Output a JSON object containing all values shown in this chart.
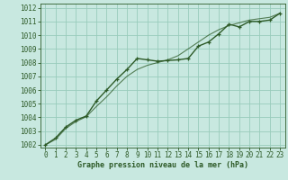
{
  "xlabel": "Graphe pression niveau de la mer (hPa)",
  "bg_color": "#c8e8e0",
  "grid_color": "#99ccbb",
  "line_color": "#2d5a27",
  "spine_color": "#2d5a27",
  "ylim": [
    1001.8,
    1012.3
  ],
  "xlim": [
    -0.5,
    23.5
  ],
  "yticks": [
    1002,
    1003,
    1004,
    1005,
    1006,
    1007,
    1008,
    1009,
    1010,
    1011,
    1012
  ],
  "xticks": [
    0,
    1,
    2,
    3,
    4,
    5,
    6,
    7,
    8,
    9,
    10,
    11,
    12,
    13,
    14,
    15,
    16,
    17,
    18,
    19,
    20,
    21,
    22,
    23
  ],
  "series1_x": [
    0,
    1,
    2,
    3,
    4,
    5,
    6,
    7,
    8,
    9,
    10,
    11,
    12,
    13,
    14,
    15,
    16,
    17,
    18,
    19,
    20,
    21,
    22,
    23
  ],
  "series1_y": [
    1002.0,
    1002.5,
    1003.3,
    1003.8,
    1004.1,
    1005.2,
    1006.0,
    1006.8,
    1007.5,
    1008.3,
    1008.2,
    1008.1,
    1008.15,
    1008.2,
    1008.3,
    1009.2,
    1009.5,
    1010.1,
    1010.8,
    1010.6,
    1011.0,
    1011.0,
    1011.1,
    1011.6
  ],
  "series2_x": [
    0,
    1,
    2,
    3,
    4,
    5,
    6,
    7,
    8,
    9,
    10,
    11,
    12,
    13,
    14,
    15,
    16,
    17,
    18,
    19,
    20,
    21,
    22,
    23
  ],
  "series2_y": [
    1002.0,
    1002.4,
    1003.2,
    1003.7,
    1004.05,
    1004.8,
    1005.5,
    1006.3,
    1007.0,
    1007.5,
    1007.8,
    1008.0,
    1008.2,
    1008.5,
    1009.0,
    1009.5,
    1010.0,
    1010.4,
    1010.7,
    1010.9,
    1011.1,
    1011.2,
    1011.3,
    1011.6
  ],
  "tick_fontsize": 5.5,
  "xlabel_fontsize": 6.0,
  "linewidth1": 1.0,
  "linewidth2": 0.8
}
